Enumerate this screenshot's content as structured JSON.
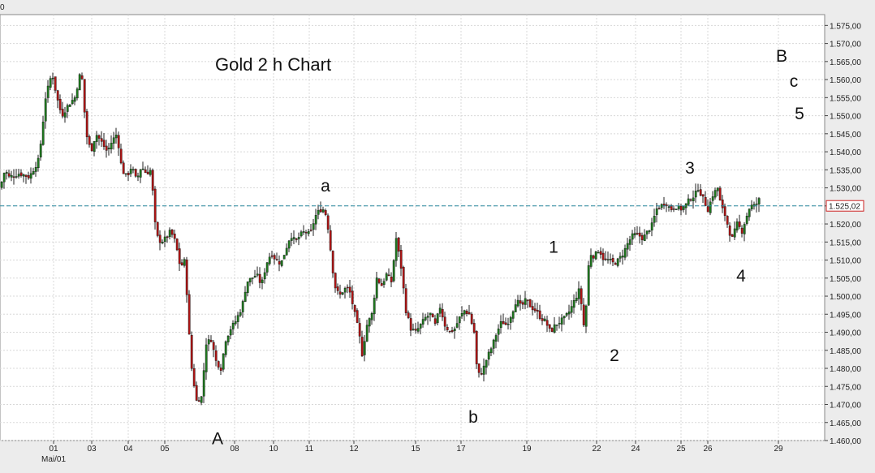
{
  "corner_label": "0",
  "chart_data": {
    "type": "candlestick",
    "title": "Gold 2 h Chart",
    "current_price_label": "1.525,02",
    "current_price": 1525.02,
    "ylim": [
      1460,
      1578
    ],
    "y_ticks": [
      1460,
      1465,
      1470,
      1475,
      1480,
      1485,
      1490,
      1495,
      1500,
      1505,
      1510,
      1515,
      1520,
      1525,
      1530,
      1535,
      1540,
      1545,
      1550,
      1555,
      1560,
      1565,
      1570,
      1575
    ],
    "y_tick_labels": [
      "1.460,00",
      "1.465,00",
      "1.470,00",
      "1.475,00",
      "1.480,00",
      "1.485,00",
      "1.490,00",
      "1.495,00",
      "1.500,00",
      "1.505,00",
      "1.510,00",
      "1.515,00",
      "1.520,00",
      "1.525,00",
      "1.530,00",
      "1.535,00",
      "1.540,00",
      "1.545,00",
      "1.550,00",
      "1.555,00",
      "1.560,00",
      "1.565,00",
      "1.570,00",
      "1.575,00"
    ],
    "x_tick_labels": [
      "01",
      "03",
      "04",
      "05",
      "08",
      "10",
      "11",
      "12",
      "15",
      "17",
      "19",
      "22",
      "24",
      "25",
      "26",
      "29"
    ],
    "x_sublabel": "Mai/01",
    "grid": true,
    "path_points": [
      [
        0,
        1530
      ],
      [
        6,
        1535
      ],
      [
        11,
        1533
      ],
      [
        24,
        1534
      ],
      [
        36,
        1533
      ],
      [
        48,
        1538
      ],
      [
        56,
        1555
      ],
      [
        64,
        1562
      ],
      [
        70,
        1555
      ],
      [
        76,
        1550
      ],
      [
        84,
        1553
      ],
      [
        92,
        1555
      ],
      [
        100,
        1563
      ],
      [
        106,
        1545
      ],
      [
        112,
        1540
      ],
      [
        118,
        1545
      ],
      [
        124,
        1543
      ],
      [
        132,
        1540
      ],
      [
        138,
        1543
      ],
      [
        144,
        1545
      ],
      [
        150,
        1535
      ],
      [
        156,
        1533
      ],
      [
        162,
        1536
      ],
      [
        168,
        1532
      ],
      [
        174,
        1536
      ],
      [
        180,
        1534
      ],
      [
        186,
        1535
      ],
      [
        192,
        1517
      ],
      [
        198,
        1515
      ],
      [
        204,
        1516
      ],
      [
        210,
        1518
      ],
      [
        216,
        1515
      ],
      [
        222,
        1508
      ],
      [
        228,
        1510
      ],
      [
        232,
        1492
      ],
      [
        236,
        1480
      ],
      [
        242,
        1471
      ],
      [
        248,
        1472
      ],
      [
        254,
        1487
      ],
      [
        260,
        1488
      ],
      [
        266,
        1482
      ],
      [
        272,
        1480
      ],
      [
        278,
        1488
      ],
      [
        284,
        1491
      ],
      [
        290,
        1493
      ],
      [
        298,
        1497
      ],
      [
        304,
        1504
      ],
      [
        310,
        1505
      ],
      [
        316,
        1506
      ],
      [
        322,
        1503
      ],
      [
        328,
        1509
      ],
      [
        334,
        1512
      ],
      [
        340,
        1510
      ],
      [
        346,
        1509
      ],
      [
        352,
        1513
      ],
      [
        358,
        1517
      ],
      [
        364,
        1515
      ],
      [
        370,
        1517
      ],
      [
        376,
        1518
      ],
      [
        382,
        1517
      ],
      [
        388,
        1522
      ],
      [
        394,
        1524
      ],
      [
        400,
        1524
      ],
      [
        404,
        1519
      ],
      [
        408,
        1511
      ],
      [
        412,
        1503
      ],
      [
        418,
        1500
      ],
      [
        424,
        1502
      ],
      [
        430,
        1502
      ],
      [
        436,
        1496
      ],
      [
        442,
        1490
      ],
      [
        446,
        1484
      ],
      [
        452,
        1492
      ],
      [
        458,
        1495
      ],
      [
        464,
        1505
      ],
      [
        470,
        1503
      ],
      [
        476,
        1506
      ],
      [
        482,
        1504
      ],
      [
        488,
        1516
      ],
      [
        494,
        1508
      ],
      [
        500,
        1496
      ],
      [
        506,
        1491
      ],
      [
        512,
        1490
      ],
      [
        518,
        1492
      ],
      [
        524,
        1494
      ],
      [
        530,
        1495
      ],
      [
        536,
        1492
      ],
      [
        542,
        1497
      ],
      [
        548,
        1492
      ],
      [
        554,
        1490
      ],
      [
        560,
        1491
      ],
      [
        566,
        1494
      ],
      [
        572,
        1496
      ],
      [
        578,
        1495
      ],
      [
        584,
        1490
      ],
      [
        588,
        1478
      ],
      [
        594,
        1479
      ],
      [
        600,
        1483
      ],
      [
        606,
        1486
      ],
      [
        612,
        1490
      ],
      [
        618,
        1493
      ],
      [
        624,
        1492
      ],
      [
        630,
        1495
      ],
      [
        636,
        1499
      ],
      [
        642,
        1497
      ],
      [
        648,
        1499
      ],
      [
        654,
        1497
      ],
      [
        660,
        1496
      ],
      [
        666,
        1494
      ],
      [
        672,
        1493
      ],
      [
        678,
        1490
      ],
      [
        684,
        1492
      ],
      [
        690,
        1493
      ],
      [
        696,
        1494
      ],
      [
        702,
        1496
      ],
      [
        708,
        1499
      ],
      [
        714,
        1502
      ],
      [
        720,
        1490
      ],
      [
        726,
        1512
      ],
      [
        732,
        1511
      ],
      [
        738,
        1513
      ],
      [
        744,
        1510
      ],
      [
        750,
        1510
      ],
      [
        756,
        1509
      ],
      [
        762,
        1510
      ],
      [
        768,
        1512
      ],
      [
        774,
        1515
      ],
      [
        780,
        1517
      ],
      [
        786,
        1517
      ],
      [
        792,
        1516
      ],
      [
        798,
        1518
      ],
      [
        804,
        1520
      ],
      [
        808,
        1524
      ],
      [
        814,
        1525
      ],
      [
        820,
        1526
      ],
      [
        826,
        1524
      ],
      [
        832,
        1525
      ],
      [
        838,
        1524
      ],
      [
        844,
        1525
      ],
      [
        850,
        1527
      ],
      [
        856,
        1528
      ],
      [
        860,
        1530
      ],
      [
        866,
        1527
      ],
      [
        872,
        1524
      ],
      [
        878,
        1528
      ],
      [
        884,
        1530
      ],
      [
        888,
        1525
      ],
      [
        894,
        1522
      ],
      [
        898,
        1518
      ],
      [
        902,
        1516
      ],
      [
        908,
        1520
      ],
      [
        914,
        1518
      ],
      [
        918,
        1521
      ],
      [
        924,
        1525
      ],
      [
        930,
        1525
      ],
      [
        936,
        1527
      ]
    ],
    "wave_labels": [
      {
        "text": "a",
        "price": 1529,
        "x": 401
      },
      {
        "text": "A",
        "price": 1459,
        "x": 268
      },
      {
        "text": "b",
        "price": 1465,
        "x": 583
      },
      {
        "text": "1",
        "price": 1512,
        "x": 682
      },
      {
        "text": "2",
        "price": 1482,
        "x": 757
      },
      {
        "text": "3",
        "price": 1534,
        "x": 850
      },
      {
        "text": "4",
        "price": 1504,
        "x": 913
      },
      {
        "text": "B",
        "price": 1565,
        "x": 963
      },
      {
        "text": "c",
        "price": 1558,
        "x": 978
      },
      {
        "text": "5",
        "price": 1549,
        "x": 985
      }
    ]
  },
  "colors": {
    "up_candle": "#1f7a1f",
    "down_candle": "#b01515",
    "wick": "#222222",
    "grid": "#d8d8d8",
    "price_line": "#2a8aa0",
    "price_label_border": "#cc2222",
    "price_label_text": "#1a3a9a"
  }
}
